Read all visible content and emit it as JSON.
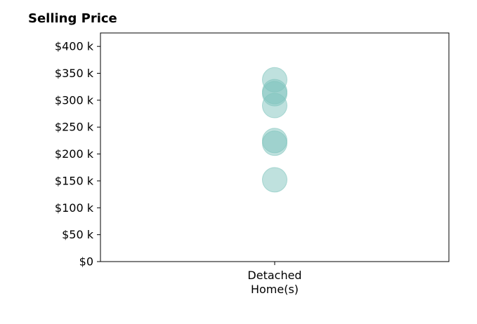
{
  "chart_data": {
    "type": "scatter",
    "title": "Selling Price",
    "xlabel": "",
    "ylabel": "",
    "categories": [
      "Detached\nHome(s)"
    ],
    "ylim": [
      0,
      425000
    ],
    "yticks": [
      0,
      50000,
      100000,
      150000,
      200000,
      250000,
      300000,
      350000,
      400000
    ],
    "ytick_labels": [
      "$0",
      "$50 k",
      "$100 k",
      "$150 k",
      "$200 k",
      "$250 k",
      "$300 k",
      "$350 k",
      "$400 k"
    ],
    "grid": false,
    "marker_color": "#7fc4bd",
    "series": [
      {
        "category": "Detached\nHome(s)",
        "values": [
          338000,
          316000,
          312000,
          290000,
          225000,
          220000,
          152000
        ]
      }
    ]
  }
}
